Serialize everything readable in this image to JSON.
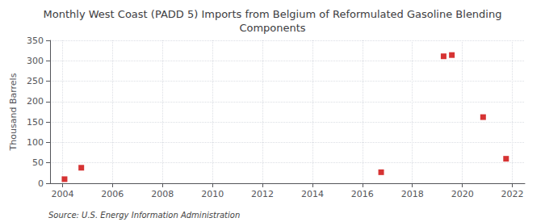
{
  "chart_data": {
    "type": "scatter",
    "title": "Monthly West Coast (PADD 5) Imports from Belgium of Reformulated Gasoline Blending\nComponents",
    "ylabel": "Thousand Barrels",
    "annotations": [
      "Source: U.S. Energy Information Administration"
    ],
    "x": [
      2004.08,
      2004.75,
      2016.75,
      2019.25,
      2019.58,
      2020.83,
      2021.75
    ],
    "values": [
      10,
      38,
      27,
      311,
      314,
      162,
      60
    ],
    "color": "#cc0000",
    "marker": "square",
    "xlim": [
      2003.5,
      2022.5
    ],
    "ylim": [
      0,
      350
    ],
    "xticks": [
      2004,
      2006,
      2008,
      2010,
      2012,
      2014,
      2016,
      2018,
      2020,
      2022
    ],
    "yticks": [
      0,
      50,
      100,
      150,
      200,
      250,
      300,
      350
    ],
    "grid": true
  }
}
